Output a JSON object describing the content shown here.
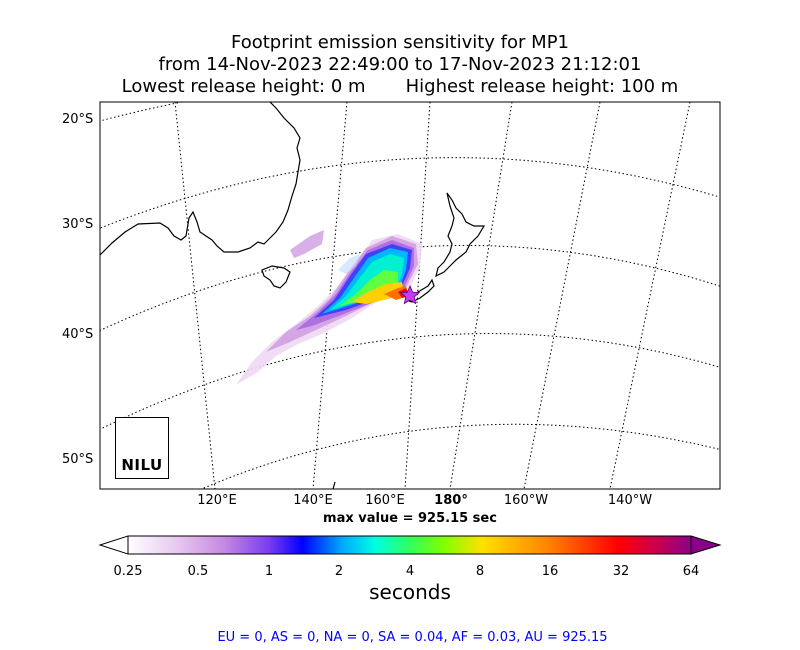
{
  "title": {
    "line1": "Footprint emission sensitivity for MP1",
    "line2": "from 14-Nov-2023 22:49:00 to 17-Nov-2023 21:12:01",
    "lowest": "Lowest release height: 0 m",
    "highest": "Highest release height: 100 m"
  },
  "map": {
    "lat_labels": [
      "20°S",
      "30°S",
      "40°S",
      "50°S"
    ],
    "lon_labels": [
      "120°E",
      "140°E",
      "160°E",
      "180°",
      "160°W",
      "140°W"
    ],
    "max_value_text": "max value = 925.15 sec",
    "release_marker_icon": "star-icon",
    "logo_text": "NILU"
  },
  "colorbar": {
    "ticks": [
      "0.25",
      "0.5",
      "1",
      "2",
      "4",
      "8",
      "16",
      "32",
      "64"
    ],
    "unit": "seconds",
    "colors": [
      "#ffffff",
      "#d9a8e8",
      "#9a4fe0",
      "#0000ff",
      "#00c8ff",
      "#00ffc8",
      "#40ff00",
      "#ffd000",
      "#ff8000",
      "#ff0000",
      "#c00060",
      "#80007a"
    ]
  },
  "footer": {
    "text": "EU = 0,  AS = 0,  NA = 0,  SA = 0.04,  AF = 0.03,  AU = 925.15"
  }
}
